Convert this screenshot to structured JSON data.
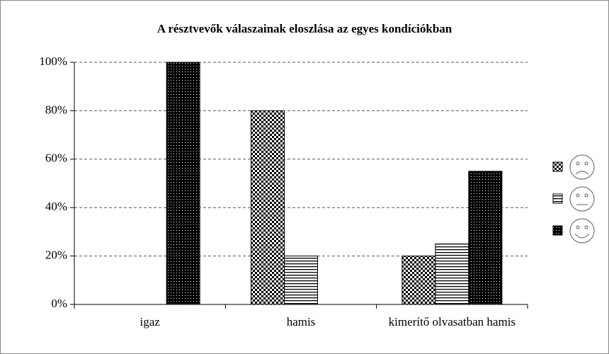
{
  "chart_data": {
    "type": "bar",
    "title": "A résztvevők válaszainak eloszlása az egyes kondíciókban",
    "categories": [
      "igaz",
      "hamis",
      "kimerítő olvasatban hamis"
    ],
    "series": [
      {
        "color": "#000000",
        "values": [
          0,
          80,
          20
        ]
      },
      {
        "color": "#000000",
        "values": [
          0,
          20,
          25
        ]
      },
      {
        "color": "#000000",
        "values": [
          100,
          0,
          55
        ]
      }
    ],
    "ylim": [
      0,
      100
    ],
    "yticks": [
      {
        "value": 0,
        "label": "0%"
      },
      {
        "value": 20,
        "label": "20%"
      },
      {
        "value": 40,
        "label": "40%"
      },
      {
        "value": 60,
        "label": "60%"
      },
      {
        "value": 80,
        "label": "80%"
      },
      {
        "value": 100,
        "label": "100%"
      }
    ],
    "grid": true
  }
}
